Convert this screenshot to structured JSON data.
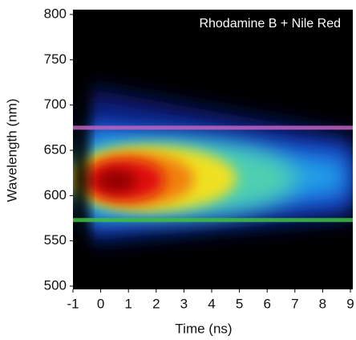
{
  "chart_data": {
    "type": "heatmap",
    "annotation": "Rhodamine B + Nile Red",
    "xlabel": "Time (ns)",
    "ylabel": "Wavelength (nm)",
    "xlim": [
      -1,
      9
    ],
    "xticks": [
      -1,
      0,
      1,
      2,
      3,
      4,
      5,
      6,
      7,
      8,
      9
    ],
    "ylim": [
      500,
      800
    ],
    "yticks": [
      500,
      550,
      600,
      650,
      700,
      750,
      800
    ],
    "hlines": [
      {
        "value": 675,
        "color": "#c060c0"
      },
      {
        "value": 573,
        "color": "#40c040"
      }
    ]
  }
}
